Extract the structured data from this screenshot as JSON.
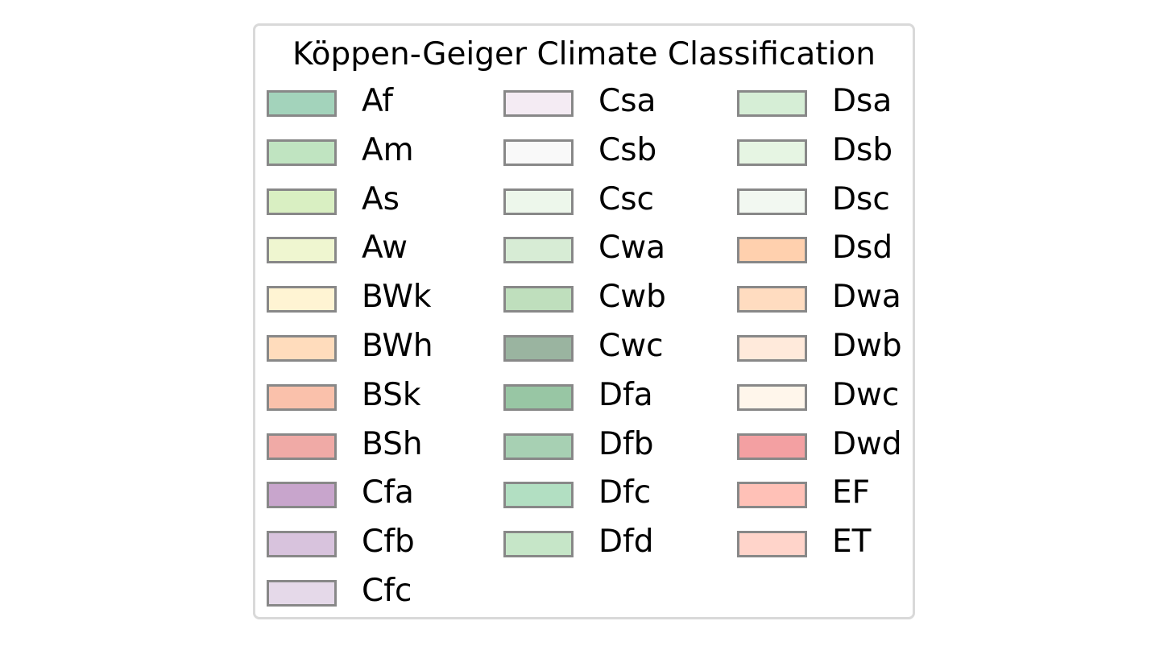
{
  "chart_data": {
    "type": "legend",
    "title": "Köppen-Geiger Climate Classification",
    "columns": [
      [
        {
          "label": "Af",
          "color": "#a3d3bb"
        },
        {
          "label": "Am",
          "color": "#c0e4c1"
        },
        {
          "label": "As",
          "color": "#d9efc2"
        },
        {
          "label": "Aw",
          "color": "#eff6d0"
        },
        {
          "label": "BWk",
          "color": "#fff4d3"
        },
        {
          "label": "BWh",
          "color": "#ffdcbc"
        },
        {
          "label": "BSk",
          "color": "#fac1ab"
        },
        {
          "label": "BSh",
          "color": "#f0aaa6"
        },
        {
          "label": "Cfa",
          "color": "#c8a5cc"
        },
        {
          "label": "Cfb",
          "color": "#d8c3dd"
        },
        {
          "label": "Cfc",
          "color": "#e5d9e9"
        }
      ],
      [
        {
          "label": "Csa",
          "color": "#f4ebf3"
        },
        {
          "label": "Csb",
          "color": "#f9f9f9"
        },
        {
          "label": "Csc",
          "color": "#edf7eb"
        },
        {
          "label": "Cwa",
          "color": "#d7ecd5"
        },
        {
          "label": "Cwb",
          "color": "#bfdfbd"
        },
        {
          "label": "Cwc",
          "color": "#9ab4a0"
        },
        {
          "label": "Dfa",
          "color": "#98c6a4"
        },
        {
          "label": "Dfb",
          "color": "#a7d0b3"
        },
        {
          "label": "Dfc",
          "color": "#b2dfc2"
        },
        {
          "label": "Dfd",
          "color": "#c6e6c8"
        }
      ],
      [
        {
          "label": "Dsa",
          "color": "#d6eed6"
        },
        {
          "label": "Dsb",
          "color": "#e6f5e3"
        },
        {
          "label": "Dsc",
          "color": "#f2f8f1"
        },
        {
          "label": "Dsd",
          "color": "#ffd0ae"
        },
        {
          "label": "Dwa",
          "color": "#ffdcc0"
        },
        {
          "label": "Dwb",
          "color": "#ffeadb"
        },
        {
          "label": "Dwc",
          "color": "#fff6eb"
        },
        {
          "label": "Dwd",
          "color": "#f3a0a2"
        },
        {
          "label": "EF",
          "color": "#ffc1b7"
        },
        {
          "label": "ET",
          "color": "#ffd4ca"
        }
      ]
    ]
  }
}
